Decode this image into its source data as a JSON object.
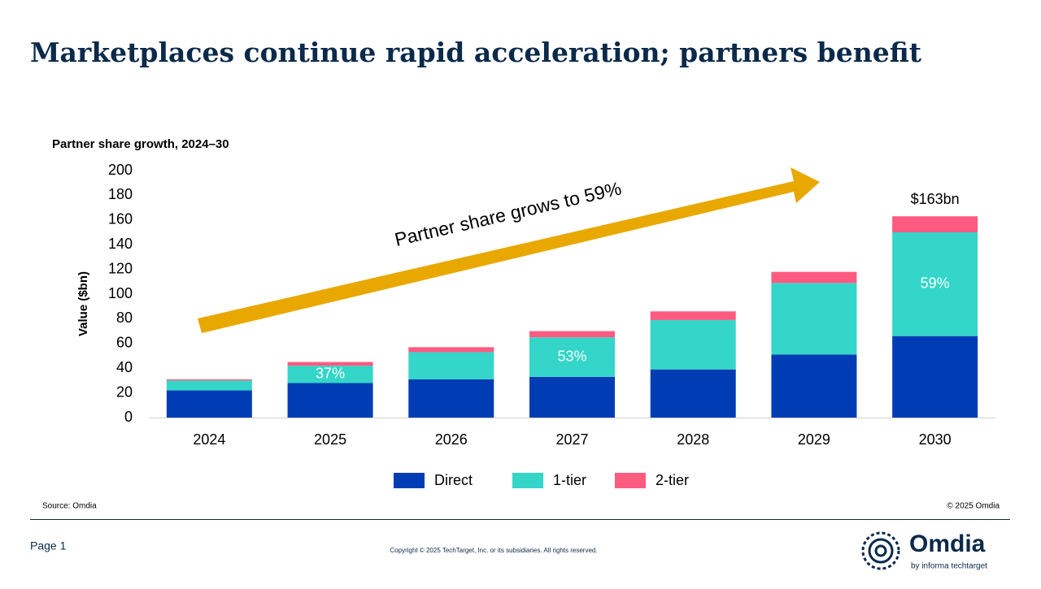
{
  "title": "Marketplaces continue rapid acceleration; partners benefit",
  "chart_data": {
    "type": "stacked-bar",
    "title": "Partner share growth, 2024–30",
    "y_label": "Value ($bn)",
    "categories": [
      "2024",
      "2025",
      "2026",
      "2027",
      "2028",
      "2029",
      "2030"
    ],
    "series": [
      {
        "name": "Direct",
        "color": "#003db5",
        "values": [
          22,
          28,
          31,
          33,
          39,
          51,
          66
        ]
      },
      {
        "name": "1-tier",
        "color": "#33d6c8",
        "values": [
          8,
          14,
          22,
          32,
          40,
          58,
          84
        ]
      },
      {
        "name": "2-tier",
        "color": "#ff5a80",
        "values": [
          1,
          3,
          4,
          5,
          7,
          9,
          13
        ]
      }
    ],
    "ylim": [
      0,
      200
    ],
    "yticks": [
      0,
      20,
      40,
      60,
      80,
      100,
      120,
      140,
      160,
      180,
      200
    ],
    "grid": false,
    "annotations": [
      {
        "text": "37%",
        "category": "2025",
        "series": "1-tier"
      },
      {
        "text": "53%",
        "category": "2027",
        "series": "1-tier"
      },
      {
        "text": "59%",
        "category": "2030",
        "series": "1-tier"
      },
      {
        "text": "$163bn",
        "category": "2030"
      }
    ],
    "arrow_text": "Partner share grows to 59%"
  },
  "footer": {
    "source": "Source: Omdia",
    "copyright_short": "© 2025 Omdia",
    "page": "Page 1",
    "copyright": "Copyright © 2025 TechTarget, Inc. or its subsidiaries. All rights reserved.",
    "logo": "Omdia",
    "logo_tagline": "by informa techtarget"
  }
}
